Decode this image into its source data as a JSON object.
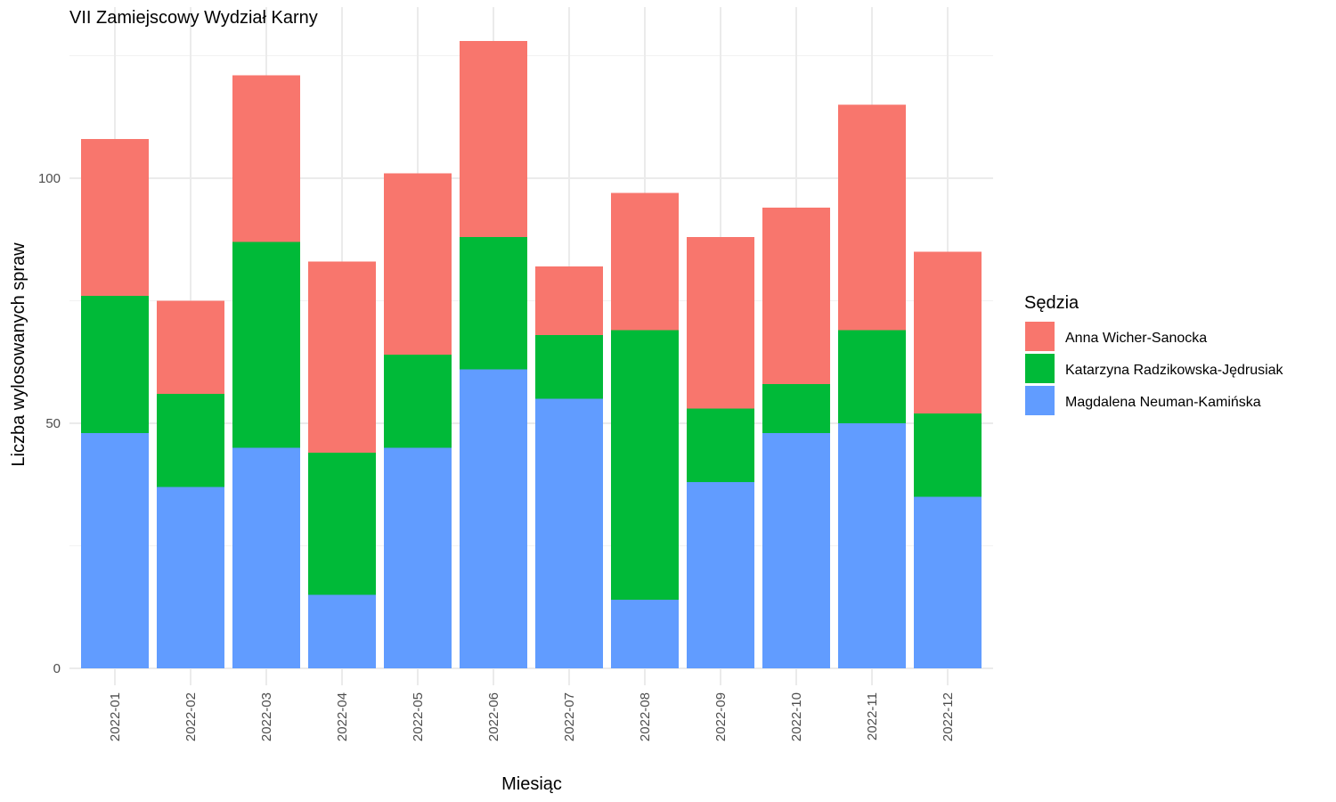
{
  "chart_data": {
    "type": "bar",
    "stacked": true,
    "title": "VII Zamiejscowy Wydział Karny",
    "xlabel": "Miesiąc",
    "ylabel": "Liczba wylosowanych spraw",
    "ylim": [
      0,
      134
    ],
    "yticks": [
      0,
      50,
      100
    ],
    "grid": true,
    "legend_title": "Sędzia",
    "legend_position": "right",
    "categories": [
      "2022-01",
      "2022-02",
      "2022-03",
      "2022-04",
      "2022-05",
      "2022-06",
      "2022-07",
      "2022-08",
      "2022-09",
      "2022-10",
      "2022-11",
      "2022-12"
    ],
    "series": [
      {
        "name": "Magdalena Neuman-Kamińska",
        "color": "#619CFF",
        "values": [
          48,
          37,
          45,
          15,
          45,
          61,
          55,
          14,
          38,
          48,
          50,
          35
        ]
      },
      {
        "name": "Katarzyna Radzikowska-Jędrusiak",
        "color": "#00BA38",
        "values": [
          28,
          19,
          42,
          29,
          19,
          27,
          13,
          55,
          15,
          10,
          19,
          17
        ]
      },
      {
        "name": "Anna Wicher-Sanocka",
        "color": "#F8766D",
        "values": [
          32,
          19,
          34,
          39,
          37,
          40,
          14,
          28,
          35,
          36,
          46,
          33
        ]
      }
    ],
    "legend_order": [
      "Anna Wicher-Sanocka",
      "Katarzyna Radzikowska-Jędrusiak",
      "Magdalena Neuman-Kamińska"
    ]
  }
}
